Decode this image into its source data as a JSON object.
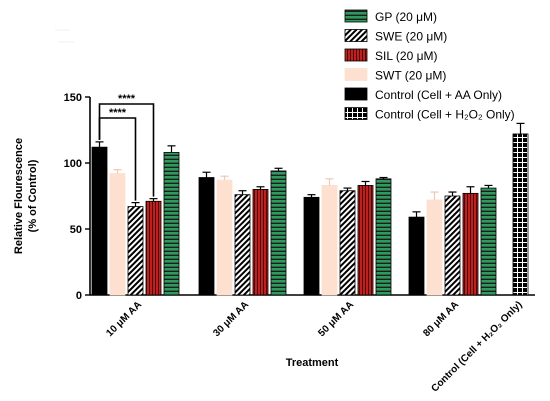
{
  "chart_data": {
    "type": "bar",
    "title": "",
    "xlabel": "Treatment",
    "ylabel": [
      "Relative Flourescence",
      "(% of Control)"
    ],
    "ylim": [
      0,
      150
    ],
    "yticks": [
      0,
      50,
      100,
      150
    ],
    "grid": false,
    "legend_placement": "top-right",
    "groups": [
      {
        "label": "10 μM AA",
        "bars": [
          {
            "series": "Control (Cell + AA Only)",
            "value": 112,
            "error": 4
          },
          {
            "series": "SWT (20 μM)",
            "value": 92,
            "error": 3
          },
          {
            "series": "SWE (20 μM)",
            "value": 67,
            "error": 3
          },
          {
            "series": "SIL (20 μM)",
            "value": 71,
            "error": 2
          },
          {
            "series": "GP (20 μM)",
            "value": 108,
            "error": 5
          }
        ]
      },
      {
        "label": "30 μM AA",
        "bars": [
          {
            "series": "Control (Cell + AA Only)",
            "value": 89,
            "error": 4
          },
          {
            "series": "SWT (20 μM)",
            "value": 87,
            "error": 3
          },
          {
            "series": "SWE (20 μM)",
            "value": 76,
            "error": 3
          },
          {
            "series": "SIL (20 μM)",
            "value": 80,
            "error": 2
          },
          {
            "series": "GP (20 μM)",
            "value": 94,
            "error": 2
          }
        ]
      },
      {
        "label": "50 μM AA",
        "bars": [
          {
            "series": "Control (Cell + AA Only)",
            "value": 74,
            "error": 2
          },
          {
            "series": "SWT (20 μM)",
            "value": 83,
            "error": 5
          },
          {
            "series": "SWE (20 μM)",
            "value": 79,
            "error": 2
          },
          {
            "series": "SIL (20 μM)",
            "value": 83,
            "error": 3
          },
          {
            "series": "GP (20 μM)",
            "value": 88,
            "error": 1
          }
        ]
      },
      {
        "label": "80 μM AA",
        "bars": [
          {
            "series": "Control (Cell + AA Only)",
            "value": 59,
            "error": 4
          },
          {
            "series": "SWT (20 μM)",
            "value": 72,
            "error": 6
          },
          {
            "series": "SWE (20 μM)",
            "value": 75,
            "error": 3
          },
          {
            "series": "SIL (20 μM)",
            "value": 77,
            "error": 5
          },
          {
            "series": "GP (20 μM)",
            "value": 81,
            "error": 2
          }
        ]
      },
      {
        "label": "Control (Cell + H₂O₂ Only)",
        "bars": [
          {
            "series": "Control (Cell + H₂O₂ Only)",
            "value": 122,
            "error": 8
          }
        ]
      }
    ],
    "series": [
      {
        "name": "GP (20 μM)",
        "fill": "#2e9b5e",
        "pattern": "hstripes",
        "stroke": "#000000"
      },
      {
        "name": "SWE (20 μM)",
        "fill": "#ffffff",
        "pattern": "diagonal",
        "stroke": "#000000"
      },
      {
        "name": "SIL (20 μM)",
        "fill": "#c0211f",
        "pattern": "vstripes",
        "stroke": "#000000"
      },
      {
        "name": "SWT (20 μM)",
        "fill": "#fde0cf",
        "pattern": "solid",
        "stroke": "#fde0cf"
      },
      {
        "name": "Control (Cell + AA Only)",
        "fill": "#000000",
        "pattern": "solid",
        "stroke": "#000000"
      },
      {
        "name": "Control (Cell + H₂O₂ Only)",
        "fill": "#000000",
        "pattern": "grid",
        "stroke": "#000000"
      }
    ],
    "annotations": [
      {
        "text": "****",
        "from_group": 0,
        "from_bar": 0,
        "to_group": 0,
        "to_bar": 3
      },
      {
        "text": "****",
        "from_group": 0,
        "from_bar": 0,
        "to_group": 0,
        "to_bar": 2
      }
    ]
  }
}
